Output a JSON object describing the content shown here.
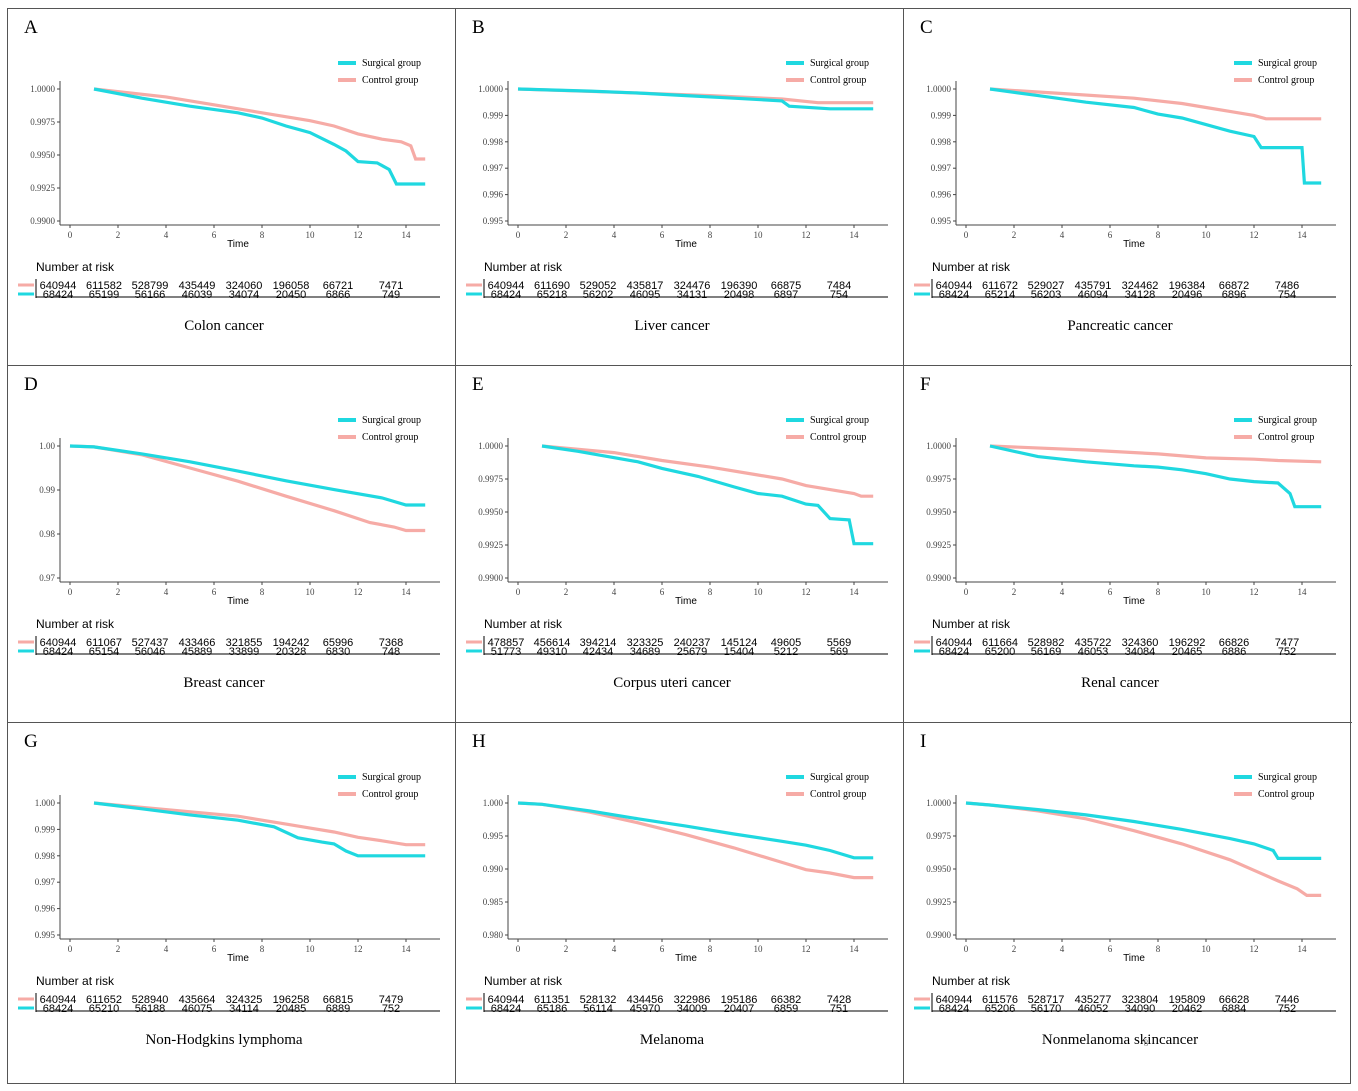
{
  "colors": {
    "surgical": "#1fd8e0",
    "control": "#f6aba6",
    "axis": "#444444"
  },
  "legend": {
    "surgical": "Surgical group",
    "control": "Control group"
  },
  "risk_title": "Number at risk",
  "xlabel": "Time",
  "page_number": "8",
  "chart_data": [
    {
      "id": "A",
      "type": "line",
      "cancer": "Colon cancer",
      "xlabel": "Time",
      "xlim": [
        0,
        15
      ],
      "xticks": [
        0,
        2,
        4,
        6,
        8,
        10,
        12,
        14
      ],
      "ylim": [
        0.99,
        1.0
      ],
      "yticks": [
        "0.9900",
        "0.9925",
        "0.9950",
        "0.9975",
        "1.0000"
      ],
      "series": [
        {
          "name": "Surgical group",
          "x": [
            1,
            3,
            5,
            7,
            8,
            9,
            10,
            11,
            11.5,
            12,
            12.8,
            13.3,
            13.6,
            14.8
          ],
          "y": [
            1.0,
            0.9993,
            0.9987,
            0.9982,
            0.9978,
            0.9972,
            0.9967,
            0.9958,
            0.9953,
            0.9945,
            0.9944,
            0.9939,
            0.9928,
            0.9928
          ]
        },
        {
          "name": "Control group",
          "x": [
            1,
            4,
            6,
            8,
            10,
            11,
            12,
            13,
            13.8,
            14.2,
            14.4,
            14.8
          ],
          "y": [
            1.0,
            0.9994,
            0.9988,
            0.9982,
            0.9976,
            0.9972,
            0.9966,
            0.9962,
            0.996,
            0.9957,
            0.9947,
            0.9947
          ]
        }
      ],
      "risk": {
        "control": [
          "640944",
          "611582",
          "528799",
          "435449",
          "324060",
          "196058",
          "66721",
          "7471"
        ],
        "surgical": [
          "68424",
          "65199",
          "56166",
          "46039",
          "34074",
          "20450",
          "6866",
          "749"
        ]
      }
    },
    {
      "id": "B",
      "type": "line",
      "cancer": "Liver cancer",
      "xlabel": "Time",
      "xlim": [
        0,
        15
      ],
      "xticks": [
        0,
        2,
        4,
        6,
        8,
        10,
        12,
        14
      ],
      "ylim": [
        0.995,
        1.0
      ],
      "yticks": [
        "0.995",
        "0.996",
        "0.997",
        "0.998",
        "0.999",
        "1.0000"
      ],
      "series": [
        {
          "name": "Surgical group",
          "x": [
            0,
            3,
            5,
            7,
            9,
            11,
            11.3,
            13,
            14.8
          ],
          "y": [
            1.0,
            0.99992,
            0.99985,
            0.99975,
            0.99965,
            0.99955,
            0.99935,
            0.99925,
            0.99925
          ]
        },
        {
          "name": "Control group",
          "x": [
            0,
            4,
            8,
            11,
            12.5,
            14.8
          ],
          "y": [
            1.0,
            0.99988,
            0.99975,
            0.99962,
            0.99948,
            0.99948
          ]
        }
      ],
      "risk": {
        "control": [
          "640944",
          "611690",
          "529052",
          "435817",
          "324476",
          "196390",
          "66875",
          "7484"
        ],
        "surgical": [
          "68424",
          "65218",
          "56202",
          "46095",
          "34131",
          "20498",
          "6897",
          "754"
        ]
      }
    },
    {
      "id": "C",
      "type": "line",
      "cancer": "Pancreatic cancer",
      "xlabel": "Time",
      "xlim": [
        0,
        15
      ],
      "xticks": [
        0,
        2,
        4,
        6,
        8,
        10,
        12,
        14
      ],
      "ylim": [
        0.995,
        1.0
      ],
      "yticks": [
        "0.995",
        "0.996",
        "0.997",
        "0.998",
        "0.999",
        "1.0000"
      ],
      "series": [
        {
          "name": "Surgical group",
          "x": [
            1,
            3,
            5,
            7,
            8,
            9,
            10,
            11,
            12,
            12.3,
            13,
            14,
            14.1,
            14.8
          ],
          "y": [
            1.0,
            0.99975,
            0.9995,
            0.9993,
            0.99905,
            0.9989,
            0.99865,
            0.9984,
            0.9982,
            0.99778,
            0.99778,
            0.99778,
            0.99644,
            0.99644
          ]
        },
        {
          "name": "Control group",
          "x": [
            1,
            4,
            7,
            9,
            10,
            11,
            12,
            12.5,
            14.8
          ],
          "y": [
            1.0,
            0.99983,
            0.99965,
            0.99945,
            0.9993,
            0.99915,
            0.999,
            0.99887,
            0.99887
          ]
        }
      ],
      "risk": {
        "control": [
          "640944",
          "611672",
          "529027",
          "435791",
          "324462",
          "196384",
          "66872",
          "7486"
        ],
        "surgical": [
          "68424",
          "65214",
          "56203",
          "46094",
          "34128",
          "20496",
          "6896",
          "754"
        ]
      }
    },
    {
      "id": "D",
      "type": "line",
      "cancer": "Breast cancer",
      "xlabel": "Time",
      "xlim": [
        0,
        15
      ],
      "xticks": [
        0,
        2,
        4,
        6,
        8,
        10,
        12,
        14
      ],
      "ylim": [
        0.97,
        1.0
      ],
      "yticks": [
        "0.97",
        "0.98",
        "0.99",
        "1.00"
      ],
      "series": [
        {
          "name": "Surgical group",
          "x": [
            0,
            1,
            3,
            5,
            7,
            9,
            11,
            13,
            14,
            14.8
          ],
          "y": [
            1.0,
            0.9998,
            0.9982,
            0.9964,
            0.9943,
            0.9921,
            0.9901,
            0.9882,
            0.9866,
            0.9866
          ]
        },
        {
          "name": "Control group",
          "x": [
            0,
            1,
            3,
            5,
            7,
            9,
            11,
            12.5,
            13.5,
            14,
            14.8
          ],
          "y": [
            1.0,
            0.9998,
            0.998,
            0.995,
            0.992,
            0.9886,
            0.9853,
            0.9826,
            0.9816,
            0.9808,
            0.9808
          ]
        }
      ],
      "risk": {
        "control": [
          "640944",
          "611067",
          "527437",
          "433466",
          "321855",
          "194242",
          "65996",
          "7368"
        ],
        "surgical": [
          "68424",
          "65154",
          "56046",
          "45889",
          "33899",
          "20328",
          "6830",
          "748"
        ]
      }
    },
    {
      "id": "E",
      "type": "line",
      "cancer": "Corpus uteri cancer",
      "xlabel": "Time",
      "xlim": [
        0,
        15
      ],
      "xticks": [
        0,
        2,
        4,
        6,
        8,
        10,
        12,
        14
      ],
      "ylim": [
        0.99,
        1.0
      ],
      "yticks": [
        "0.9900",
        "0.9925",
        "0.9950",
        "0.9975",
        "1.0000"
      ],
      "series": [
        {
          "name": "Surgical group",
          "x": [
            1,
            2.5,
            5,
            6,
            7.5,
            9,
            10,
            11,
            12,
            12.5,
            13,
            13.8,
            14,
            14.8
          ],
          "y": [
            1.0,
            0.9996,
            0.9988,
            0.9983,
            0.9977,
            0.9969,
            0.9964,
            0.9962,
            0.9956,
            0.9955,
            0.9945,
            0.9944,
            0.9926,
            0.9926
          ]
        },
        {
          "name": "Control group",
          "x": [
            1,
            4,
            6,
            8,
            10,
            11,
            12,
            13,
            14,
            14.3,
            14.8
          ],
          "y": [
            1.0,
            0.9995,
            0.9989,
            0.9984,
            0.9978,
            0.9975,
            0.997,
            0.9967,
            0.9964,
            0.9962,
            0.9962
          ]
        }
      ],
      "risk": {
        "control": [
          "478857",
          "456614",
          "394214",
          "323325",
          "240237",
          "145124",
          "49605",
          "5569"
        ],
        "surgical": [
          "51773",
          "49310",
          "42434",
          "34689",
          "25679",
          "15404",
          "5212",
          "569"
        ]
      }
    },
    {
      "id": "F",
      "type": "line",
      "cancer": "Renal cancer",
      "xlabel": "Time",
      "xlim": [
        0,
        15
      ],
      "xticks": [
        0,
        2,
        4,
        6,
        8,
        10,
        12,
        14
      ],
      "ylim": [
        0.99,
        1.0
      ],
      "yticks": [
        "0.9900",
        "0.9925",
        "0.9950",
        "0.9975",
        "1.0000"
      ],
      "series": [
        {
          "name": "Surgical group",
          "x": [
            1,
            3,
            5,
            7,
            8,
            9,
            10,
            11,
            12,
            13,
            13.5,
            13.7,
            14.8
          ],
          "y": [
            1.0,
            0.9992,
            0.9988,
            0.9985,
            0.9984,
            0.9982,
            0.9979,
            0.9975,
            0.9973,
            0.9972,
            0.9964,
            0.9954,
            0.9954
          ]
        },
        {
          "name": "Control group",
          "x": [
            1,
            5,
            8,
            10,
            12,
            13,
            14.8
          ],
          "y": [
            1.0,
            0.9997,
            0.9994,
            0.9991,
            0.999,
            0.9989,
            0.9988
          ]
        }
      ],
      "risk": {
        "control": [
          "640944",
          "611664",
          "528982",
          "435722",
          "324360",
          "196292",
          "66826",
          "7477"
        ],
        "surgical": [
          "68424",
          "65200",
          "56169",
          "46053",
          "34084",
          "20465",
          "6886",
          "752"
        ]
      }
    },
    {
      "id": "G",
      "type": "line",
      "cancer": "Non-Hodgkins lymphoma",
      "xlabel": "Time",
      "xlim": [
        0,
        15
      ],
      "xticks": [
        0,
        2,
        4,
        6,
        8,
        10,
        12,
        14
      ],
      "ylim": [
        0.995,
        1.0
      ],
      "yticks": [
        "0.995",
        "0.996",
        "0.997",
        "0.998",
        "0.999",
        "1.000"
      ],
      "series": [
        {
          "name": "Surgical group",
          "x": [
            1,
            3,
            5,
            7,
            8.5,
            9.5,
            10.5,
            11,
            11.5,
            12,
            14.8
          ],
          "y": [
            1.0,
            0.99978,
            0.99955,
            0.99935,
            0.9991,
            0.99868,
            0.99852,
            0.99845,
            0.99818,
            0.998,
            0.998
          ]
        },
        {
          "name": "Control group",
          "x": [
            1,
            4,
            7,
            9,
            10,
            11,
            12,
            13,
            14,
            14.8
          ],
          "y": [
            1.0,
            0.99975,
            0.9995,
            0.9992,
            0.99905,
            0.9989,
            0.9987,
            0.99857,
            0.99842,
            0.99842
          ]
        }
      ],
      "risk": {
        "control": [
          "640944",
          "611652",
          "528940",
          "435664",
          "324325",
          "196258",
          "66815",
          "7479"
        ],
        "surgical": [
          "68424",
          "65210",
          "56188",
          "46075",
          "34114",
          "20485",
          "6889",
          "752"
        ]
      }
    },
    {
      "id": "H",
      "type": "line",
      "cancer": "Melanoma",
      "xlabel": "Time",
      "xlim": [
        0,
        15
      ],
      "xticks": [
        0,
        2,
        4,
        6,
        8,
        10,
        12,
        14
      ],
      "ylim": [
        0.98,
        1.0
      ],
      "yticks": [
        "0.980",
        "0.985",
        "0.990",
        "0.995",
        "1.000"
      ],
      "series": [
        {
          "name": "Surgical group",
          "x": [
            0,
            1,
            3,
            5,
            7,
            9,
            11,
            12,
            13,
            14,
            14.8
          ],
          "y": [
            1.0,
            0.9998,
            0.9988,
            0.9976,
            0.9965,
            0.9953,
            0.9942,
            0.9936,
            0.9928,
            0.9917,
            0.9917
          ]
        },
        {
          "name": "Control group",
          "x": [
            0,
            1,
            3,
            5,
            7,
            9,
            11,
            12,
            13,
            14,
            14.8
          ],
          "y": [
            1.0,
            0.9998,
            0.9986,
            0.997,
            0.9952,
            0.9932,
            0.991,
            0.9899,
            0.9894,
            0.9887,
            0.9887
          ]
        }
      ],
      "risk": {
        "control": [
          "640944",
          "611351",
          "528132",
          "434456",
          "322986",
          "195186",
          "66382",
          "7428"
        ],
        "surgical": [
          "68424",
          "65186",
          "56114",
          "45970",
          "34009",
          "20407",
          "6859",
          "751"
        ]
      }
    },
    {
      "id": "I",
      "type": "line",
      "cancer": "Nonmelanoma skincancer",
      "xlabel": "Time",
      "xlim": [
        0,
        15
      ],
      "xticks": [
        0,
        2,
        4,
        6,
        8,
        10,
        12,
        14
      ],
      "ylim": [
        0.99,
        1.0
      ],
      "yticks": [
        "0.9900",
        "0.9925",
        "0.9950",
        "0.9975",
        "1.0000"
      ],
      "series": [
        {
          "name": "Surgical group",
          "x": [
            0,
            1,
            3,
            5,
            7,
            9,
            11,
            12,
            12.8,
            13,
            14.8
          ],
          "y": [
            1.0,
            0.99985,
            0.9995,
            0.9991,
            0.9986,
            0.998,
            0.9973,
            0.9969,
            0.9964,
            0.9958,
            0.9958
          ]
        },
        {
          "name": "Control group",
          "x": [
            0,
            1,
            3,
            5,
            7,
            9,
            11,
            12,
            13,
            13.8,
            14.2,
            14.8
          ],
          "y": [
            1.0,
            0.99985,
            0.9994,
            0.9988,
            0.9979,
            0.9969,
            0.9957,
            0.9949,
            0.9941,
            0.9935,
            0.993,
            0.993
          ]
        }
      ],
      "risk": {
        "control": [
          "640944",
          "611576",
          "528717",
          "435277",
          "323804",
          "195809",
          "66628",
          "7446"
        ],
        "surgical": [
          "68424",
          "65206",
          "56170",
          "46052",
          "34090",
          "20462",
          "6884",
          "752"
        ]
      }
    }
  ]
}
